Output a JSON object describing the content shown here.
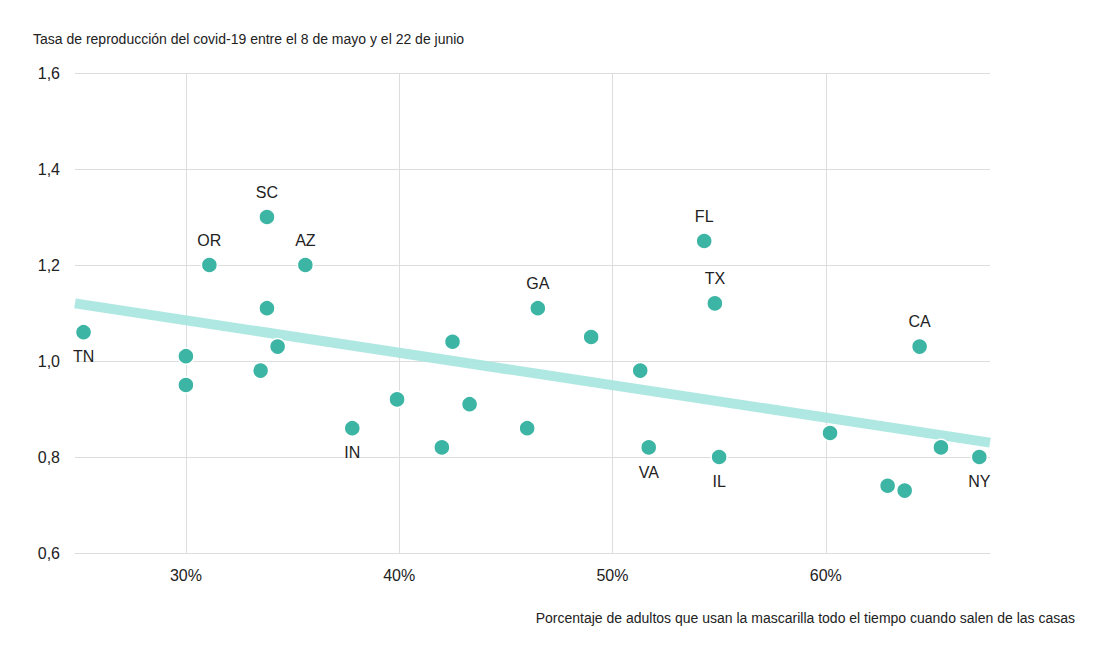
{
  "chart_data": {
    "type": "scatter",
    "title": "Tasa de reproducción del covid-19 entre el 8 de mayo y el 22 de junio",
    "x_label": "Porcentaje de adultos que usan la mascarilla todo el tiempo cuando salen de las casas",
    "x": [
      25.2,
      30.0,
      30.0,
      31.1,
      33.8,
      33.8,
      33.5,
      34.3,
      35.6,
      37.8,
      39.9,
      42.0,
      42.5,
      43.3,
      46.0,
      46.5,
      49.0,
      51.3,
      51.7,
      54.3,
      54.8,
      55.0,
      60.2,
      62.9,
      63.7,
      64.4,
      65.4,
      67.2
    ],
    "values": [
      1.06,
      1.01,
      0.95,
      1.2,
      1.3,
      1.11,
      0.98,
      1.03,
      1.2,
      0.86,
      0.92,
      0.82,
      1.04,
      0.91,
      0.86,
      1.11,
      1.05,
      0.98,
      0.82,
      1.25,
      1.12,
      0.8,
      0.85,
      0.74,
      0.73,
      1.03,
      0.82,
      0.8
    ],
    "labels": [
      "TN",
      null,
      null,
      "OR",
      "SC",
      null,
      null,
      null,
      "AZ",
      "IN",
      null,
      null,
      null,
      null,
      null,
      "GA",
      null,
      null,
      "VA",
      "FL",
      "TX",
      "IL",
      null,
      null,
      null,
      "CA",
      null,
      "NY"
    ],
    "color": "#3db5a5",
    "trend_line": {
      "x": [
        24.8,
        67.7
      ],
      "values": [
        1.12,
        0.83
      ],
      "color": "#a6e6df"
    },
    "xlim": [
      24.8,
      67.7
    ],
    "xticks": [
      {
        "value": 30,
        "label": "30%"
      },
      {
        "value": 40,
        "label": "40%"
      },
      {
        "value": 50,
        "label": "50%"
      },
      {
        "value": 60,
        "label": "60%"
      }
    ],
    "ylim": [
      0.6,
      1.6
    ],
    "yticks": [
      {
        "value": 0.6,
        "label": "0,6"
      },
      {
        "value": 0.8,
        "label": "0,8"
      },
      {
        "value": 1.0,
        "label": "1,0"
      },
      {
        "value": 1.2,
        "label": "1,2"
      },
      {
        "value": 1.4,
        "label": "1,4"
      },
      {
        "value": 1.6,
        "label": "1,6"
      }
    ],
    "grid": true
  }
}
